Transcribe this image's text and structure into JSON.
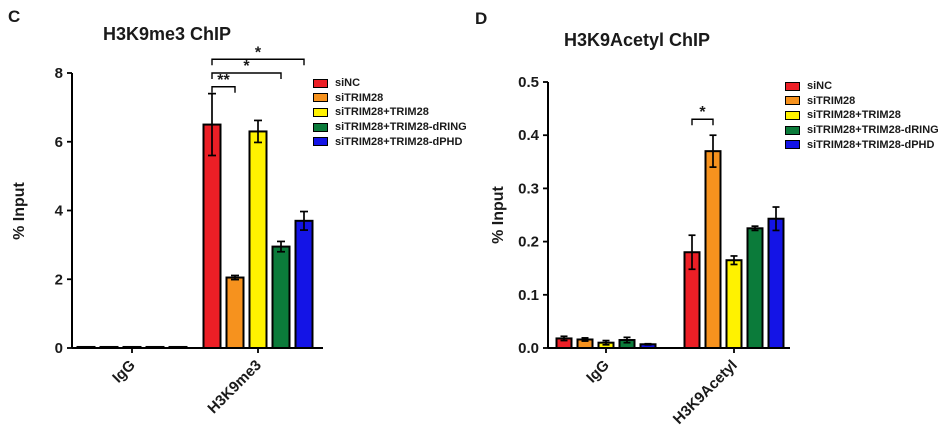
{
  "panels": [
    {
      "letter": "C",
      "title": "H3K9me3 ChIP",
      "ylabel": "% Input"
    },
    {
      "letter": "D",
      "title": "H3K9Acetyl ChIP",
      "ylabel": "% Input"
    }
  ],
  "chart_data": [
    {
      "type": "bar",
      "title": "H3K9me3 ChIP",
      "ylabel": "% Input",
      "categories": [
        "IgG",
        "H3K9me3"
      ],
      "series": [
        {
          "name": "siNC",
          "color": "#EC1F26",
          "values": [
            0.03,
            6.5
          ],
          "errors": [
            0,
            0.9
          ]
        },
        {
          "name": "siTRIM28",
          "color": "#F6921E",
          "values": [
            0.03,
            2.05
          ],
          "errors": [
            0,
            0.06
          ]
        },
        {
          "name": "siTRIM28+TRIM28",
          "color": "#FFF200",
          "values": [
            0.03,
            6.3
          ],
          "errors": [
            0,
            0.32
          ]
        },
        {
          "name": "siTRIM28+TRIM28-dRING",
          "color": "#0B7B3A",
          "values": [
            0.03,
            2.95
          ],
          "errors": [
            0,
            0.15
          ]
        },
        {
          "name": "siTRIM28+TRIM28-dPHD",
          "color": "#1414E6",
          "values": [
            0.03,
            3.7
          ],
          "errors": [
            0,
            0.27
          ]
        }
      ],
      "ylim": [
        0,
        8
      ],
      "yticks": [
        0,
        2,
        4,
        6,
        8
      ],
      "ytick_labels": [
        "0",
        "2",
        "4",
        "6",
        "8"
      ],
      "grid": false,
      "legend_position": "right",
      "significance": [
        {
          "series_a": 0,
          "series_b": 1,
          "category": 1,
          "label": "**",
          "y": 7.6
        },
        {
          "series_a": 0,
          "series_b": 3,
          "category": 1,
          "label": "*",
          "y": 8.0
        },
        {
          "series_a": 0,
          "series_b": 4,
          "category": 1,
          "label": "*",
          "y": 8.4
        }
      ]
    },
    {
      "type": "bar",
      "title": "H3K9Acetyl ChIP",
      "ylabel": "% Input",
      "categories": [
        "IgG",
        "H3K9Acetyl"
      ],
      "series": [
        {
          "name": "siNC",
          "color": "#EC1F26",
          "values": [
            0.018,
            0.18
          ],
          "errors": [
            0.004,
            0.032
          ]
        },
        {
          "name": "siTRIM28",
          "color": "#F6921E",
          "values": [
            0.016,
            0.37
          ],
          "errors": [
            0.003,
            0.03
          ]
        },
        {
          "name": "siTRIM28+TRIM28",
          "color": "#FFF200",
          "values": [
            0.01,
            0.165
          ],
          "errors": [
            0.004,
            0.008
          ]
        },
        {
          "name": "siTRIM28+TRIM28-dRING",
          "color": "#0B7B3A",
          "values": [
            0.015,
            0.225
          ],
          "errors": [
            0.005,
            0.004
          ]
        },
        {
          "name": "siTRIM28+TRIM28-dPHD",
          "color": "#1414E6",
          "values": [
            0.007,
            0.243
          ],
          "errors": [
            0.001,
            0.022
          ]
        }
      ],
      "ylim": [
        0,
        0.5
      ],
      "yticks": [
        0,
        0.1,
        0.2,
        0.3,
        0.4,
        0.5
      ],
      "ytick_labels": [
        "0.0",
        "0.1",
        "0.2",
        "0.3",
        "0.4",
        "0.5"
      ],
      "grid": false,
      "legend_position": "right",
      "significance": [
        {
          "series_a": 0,
          "series_b": 1,
          "category": 1,
          "label": "*",
          "y": 0.43
        }
      ]
    }
  ]
}
